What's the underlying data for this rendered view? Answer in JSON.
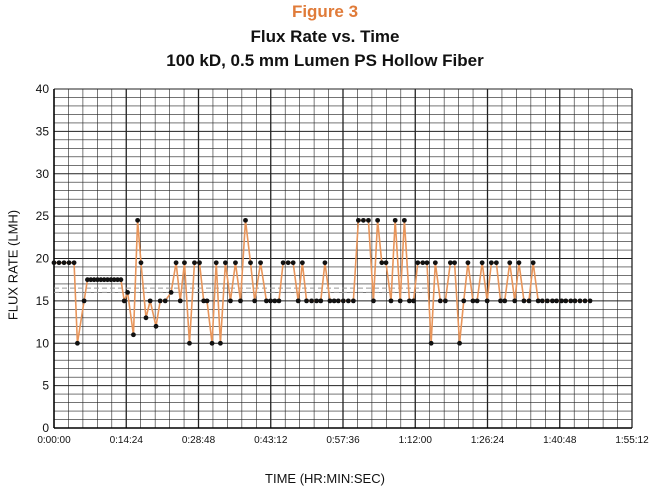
{
  "figure_label": "Figure 3",
  "colors": {
    "figure_label": "#e07b39",
    "line": "#e8955a",
    "marker": "#111111",
    "grid": "#222222"
  },
  "chart_data": {
    "type": "line",
    "title": "Flux Rate vs. Time",
    "subtitle": "100 kD, 0.5 mm Lumen PS Hollow Fiber",
    "xlabel": "TIME (HR:MIN:SEC)",
    "ylabel": "FLUX RATE (LMH)",
    "x_unit": "seconds",
    "xlim": [
      0,
      6912
    ],
    "ylim": [
      0,
      40
    ],
    "xticks": [
      0,
      864,
      1728,
      2592,
      3456,
      4320,
      5184,
      6048,
      6912
    ],
    "xtick_labels": [
      "0:00:00",
      "0:14:24",
      "0:28:48",
      "0:43:12",
      "0:57:36",
      "1:12:00",
      "1:26:24",
      "1:40:48",
      "1:55:12"
    ],
    "yticks": [
      0,
      5,
      10,
      15,
      20,
      25,
      30,
      35,
      40
    ],
    "ytick_labels": [
      "0",
      "5",
      "10",
      "15",
      "20",
      "25",
      "30",
      "35",
      "40"
    ],
    "grid": true,
    "legend": "none",
    "series": [
      {
        "x": [
          0,
          60,
          120,
          180,
          240,
          280,
          360,
          400,
          440,
          480,
          520,
          560,
          600,
          640,
          680,
          720,
          760,
          800,
          840,
          880,
          950,
          1000,
          1040,
          1100,
          1150,
          1220,
          1270,
          1330,
          1400,
          1460,
          1510,
          1560,
          1620,
          1680,
          1740,
          1790,
          1830,
          1890,
          1940,
          1990,
          2050,
          2110,
          2170,
          2230,
          2290,
          2350,
          2400,
          2470,
          2540,
          2590,
          2640,
          2690,
          2740,
          2800,
          2860,
          2920,
          2970,
          3020,
          3080,
          3140,
          3190,
          3240,
          3300,
          3350,
          3400,
          3460,
          3520,
          3580,
          3640,
          3700,
          3760,
          3820,
          3870,
          3920,
          3970,
          4030,
          4080,
          4140,
          4190,
          4250,
          4300,
          4350,
          4410,
          4460,
          4510,
          4560,
          4620,
          4680,
          4740,
          4790,
          4850,
          4900,
          4950,
          5010,
          5060,
          5120,
          5180,
          5230,
          5290,
          5340,
          5390,
          5450,
          5510,
          5560,
          5620,
          5680,
          5730,
          5790,
          5840,
          5900,
          5960,
          6010,
          6070,
          6120,
          6180,
          6230,
          6290,
          6350,
          6410
        ],
        "y": [
          19.5,
          19.5,
          19.5,
          19.5,
          19.5,
          10,
          15,
          17.5,
          17.5,
          17.5,
          17.5,
          17.5,
          17.5,
          17.5,
          17.5,
          17.5,
          17.5,
          17.5,
          15,
          16,
          11,
          24.5,
          19.5,
          13,
          15,
          12,
          15,
          15,
          16,
          19.5,
          15,
          19.5,
          10,
          19.5,
          19.5,
          15,
          15,
          10,
          19.5,
          10,
          19.5,
          15,
          19.5,
          15,
          24.5,
          19.5,
          15,
          19.5,
          15,
          15,
          15,
          15,
          19.5,
          19.5,
          19.5,
          15,
          19.5,
          15,
          15,
          15,
          15,
          19.5,
          15,
          15,
          15,
          15,
          15,
          15,
          24.5,
          24.5,
          24.5,
          15,
          24.5,
          19.5,
          19.5,
          15,
          24.5,
          15,
          24.5,
          15,
          15,
          19.5,
          19.5,
          19.5,
          10,
          19.5,
          15,
          15,
          19.5,
          19.5,
          10,
          15,
          19.5,
          15,
          15,
          19.5,
          15,
          19.5,
          19.5,
          15,
          15,
          19.5,
          15,
          19.5,
          15,
          15,
          19.5,
          15,
          15,
          15,
          15,
          15,
          15,
          15,
          15,
          15,
          15,
          15,
          15
        ]
      }
    ],
    "reference_lines": [
      16.5,
      16.0
    ]
  }
}
